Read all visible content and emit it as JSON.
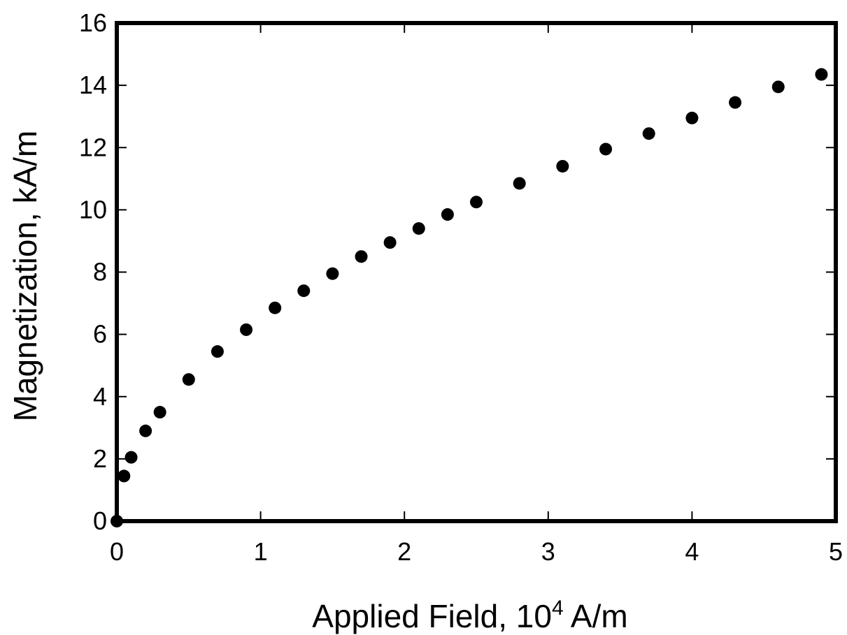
{
  "chart_data": {
    "type": "scatter",
    "xlabel_text": "Applied Field, 10",
    "xlabel_exponent": "4",
    "xlabel_unit": " A/m",
    "ylabel": "Magnetization, kA/m",
    "xlim": [
      0,
      5
    ],
    "ylim": [
      0,
      16
    ],
    "x_ticks": [
      0,
      1,
      2,
      3,
      4,
      5
    ],
    "y_ticks": [
      0,
      2,
      4,
      6,
      8,
      10,
      12,
      14,
      16
    ],
    "x_tick_labels": [
      "0",
      "1",
      "2",
      "3",
      "4",
      "5"
    ],
    "y_tick_labels": [
      "0",
      "2",
      "4",
      "6",
      "8",
      "10",
      "12",
      "14",
      "16"
    ],
    "grid": false,
    "marker_color": "#000000",
    "series": [
      {
        "points": [
          [
            0.0,
            0.0
          ],
          [
            0.05,
            1.45
          ],
          [
            0.1,
            2.05
          ],
          [
            0.2,
            2.9
          ],
          [
            0.3,
            3.5
          ],
          [
            0.5,
            4.55
          ],
          [
            0.7,
            5.45
          ],
          [
            0.9,
            6.15
          ],
          [
            1.1,
            6.85
          ],
          [
            1.3,
            7.4
          ],
          [
            1.5,
            7.95
          ],
          [
            1.7,
            8.5
          ],
          [
            1.9,
            8.95
          ],
          [
            2.1,
            9.4
          ],
          [
            2.3,
            9.85
          ],
          [
            2.5,
            10.25
          ],
          [
            2.8,
            10.85
          ],
          [
            3.1,
            11.4
          ],
          [
            3.4,
            11.95
          ],
          [
            3.7,
            12.45
          ],
          [
            4.0,
            12.95
          ],
          [
            4.3,
            13.45
          ],
          [
            4.6,
            13.95
          ],
          [
            4.9,
            14.35
          ]
        ]
      }
    ]
  }
}
